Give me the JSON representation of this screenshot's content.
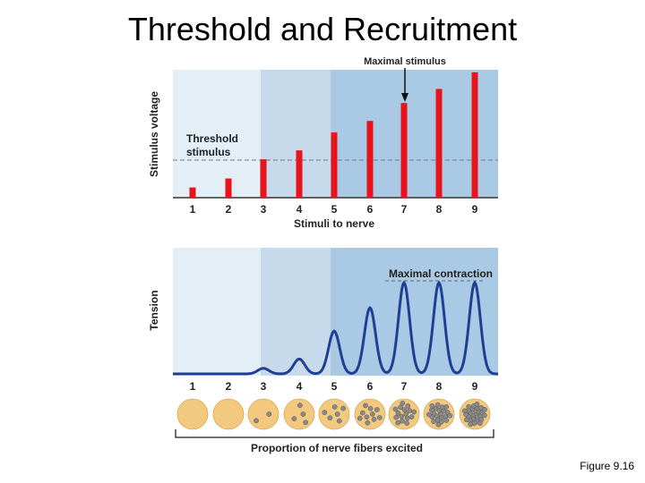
{
  "title": "Threshold and Recruitment",
  "caption": "Figure 9.16",
  "top_panel": {
    "y_label": "Stimulus voltage",
    "x_label": "Stimuli to nerve",
    "threshold_label_line1": "Threshold",
    "threshold_label_line2": "stimulus",
    "maximal_label": "Maximal stimulus"
  },
  "bottom_panel": {
    "y_label": "Tension",
    "maximal_label": "Maximal contraction",
    "bottom_label": "Proportion of nerve fibers excited"
  },
  "stimuli": [
    "1",
    "2",
    "3",
    "4",
    "5",
    "6",
    "7",
    "8",
    "9"
  ],
  "stimulus_voltage": [
    0.08,
    0.15,
    0.3,
    0.37,
    0.51,
    0.6,
    0.74,
    0.85,
    0.98
  ],
  "tension_peaks": [
    0,
    0,
    0.06,
    0.16,
    0.46,
    0.71,
    0.98,
    0.98,
    0.98
  ],
  "fibers_dots": [
    0,
    0,
    2,
    4,
    6,
    10,
    16,
    22,
    28
  ],
  "colors": {
    "band1": "#e3eef7",
    "band2": "#c6daeb",
    "band3": "#a9c9e4",
    "band3_right": "#98bfdf",
    "bar": "#e8141b",
    "curve": "#1f3f95",
    "circle": "#f2c97e",
    "dot": "#8a8a8a"
  }
}
